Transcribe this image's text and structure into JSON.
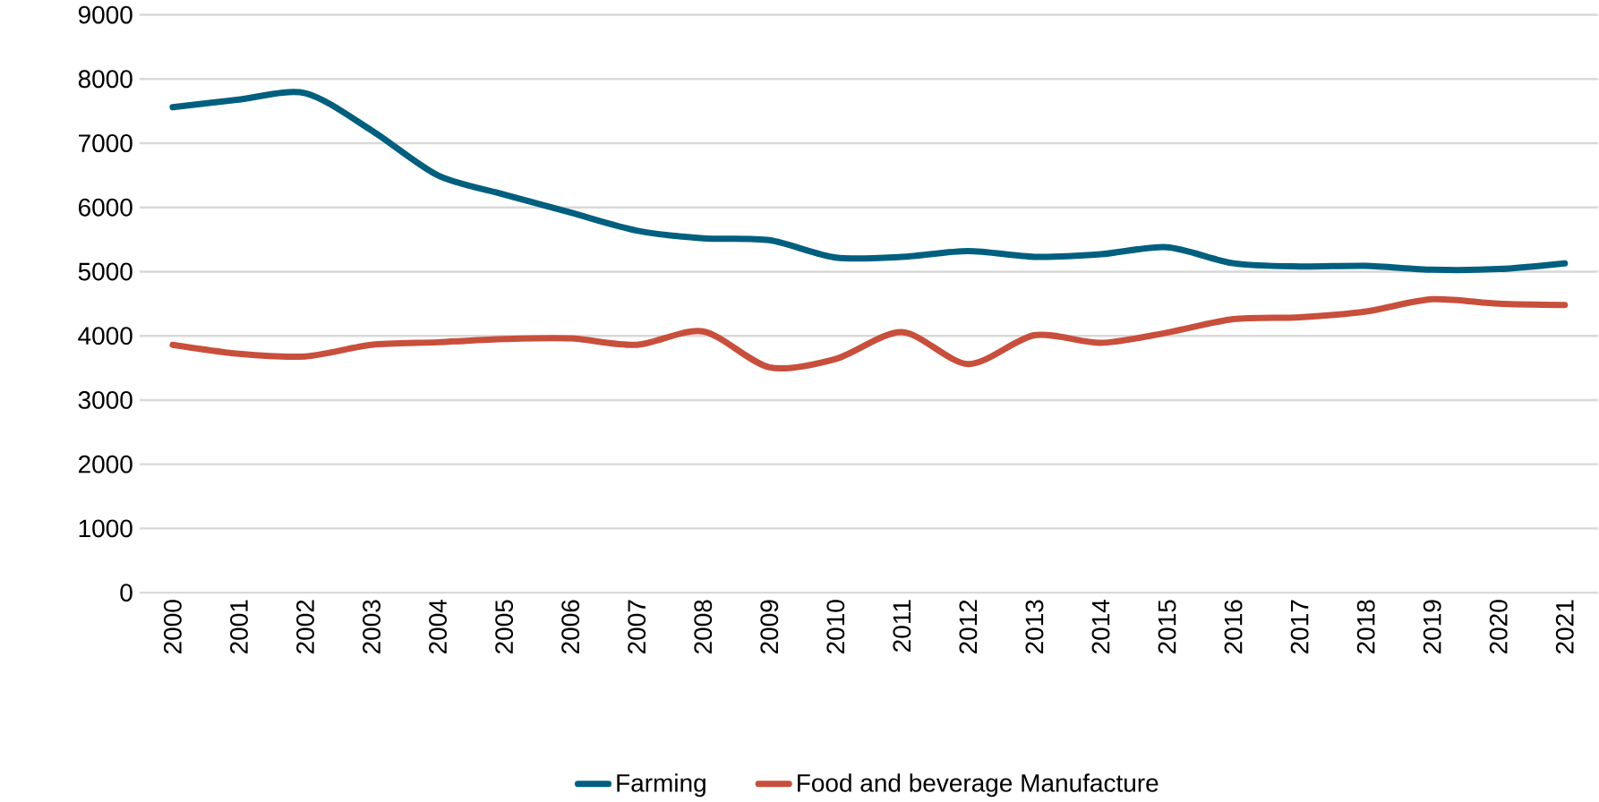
{
  "chart_data": {
    "type": "line",
    "categories": [
      "2000",
      "2001",
      "2002",
      "2003",
      "2004",
      "2005",
      "2006",
      "2007",
      "2008",
      "2009",
      "2010",
      "2011",
      "2012",
      "2013",
      "2014",
      "2015",
      "2016",
      "2017",
      "2018",
      "2019",
      "2020",
      "2021"
    ],
    "series": [
      {
        "name": "Farming",
        "color": "#005f7f",
        "values": [
          7560,
          7680,
          7780,
          7200,
          6500,
          6200,
          5920,
          5640,
          5520,
          5490,
          5220,
          5230,
          5320,
          5230,
          5270,
          5380,
          5130,
          5080,
          5090,
          5030,
          5040,
          5130
        ]
      },
      {
        "name": "Food and beverage Manufacture",
        "color": "#c84f3c",
        "values": [
          3860,
          3720,
          3680,
          3860,
          3900,
          3950,
          3960,
          3860,
          4070,
          3510,
          3640,
          4060,
          3560,
          4010,
          3890,
          4050,
          4260,
          4290,
          4380,
          4570,
          4500,
          4480
        ]
      }
    ],
    "ylim": [
      0,
      9000
    ],
    "yticks": [
      0,
      1000,
      2000,
      3000,
      4000,
      5000,
      6000,
      7000,
      8000,
      9000
    ],
    "grid": "y",
    "legend": "bottom",
    "marker": "none",
    "line_style": "solid"
  }
}
